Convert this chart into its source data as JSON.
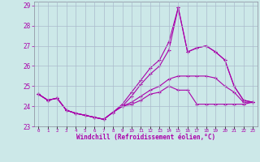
{
  "xlabel": "Windchill (Refroidissement éolien,°C)",
  "background_color": "#cce8e8",
  "grid_color": "#aabbcc",
  "line_color": "#aa00aa",
  "hours": [
    0,
    1,
    2,
    3,
    4,
    5,
    6,
    7,
    8,
    9,
    10,
    11,
    12,
    13,
    14,
    15,
    16,
    17,
    18,
    19,
    20,
    21,
    22,
    23
  ],
  "line1": [
    24.6,
    24.3,
    24.4,
    23.8,
    23.65,
    23.55,
    23.45,
    23.35,
    23.7,
    24.0,
    24.1,
    24.3,
    24.6,
    24.7,
    25.0,
    24.8,
    24.8,
    24.1,
    24.1,
    24.1,
    24.1,
    24.1,
    24.1,
    24.2
  ],
  "line2": [
    24.6,
    24.3,
    24.4,
    23.8,
    23.65,
    23.55,
    23.45,
    23.35,
    23.7,
    24.0,
    24.2,
    24.5,
    24.8,
    25.0,
    25.35,
    25.5,
    25.5,
    25.5,
    25.5,
    25.4,
    25.0,
    24.7,
    24.2,
    24.2
  ],
  "line3": [
    24.6,
    24.3,
    24.4,
    23.8,
    23.65,
    23.55,
    23.45,
    23.35,
    23.7,
    24.0,
    24.5,
    25.1,
    25.6,
    26.0,
    26.8,
    28.9,
    26.7,
    26.9,
    27.0,
    26.7,
    26.3,
    25.0,
    24.3,
    24.2
  ],
  "line4": [
    24.6,
    24.3,
    24.4,
    23.8,
    23.65,
    23.55,
    23.45,
    23.35,
    23.7,
    24.1,
    24.7,
    25.3,
    25.9,
    26.3,
    27.2,
    28.9,
    26.7,
    26.9,
    27.0,
    26.7,
    26.3,
    25.0,
    24.3,
    24.2
  ],
  "ylim": [
    23.0,
    29.2
  ],
  "yticks": [
    23,
    24,
    25,
    26,
    27,
    28,
    29
  ],
  "xlim": [
    -0.5,
    23.5
  ]
}
